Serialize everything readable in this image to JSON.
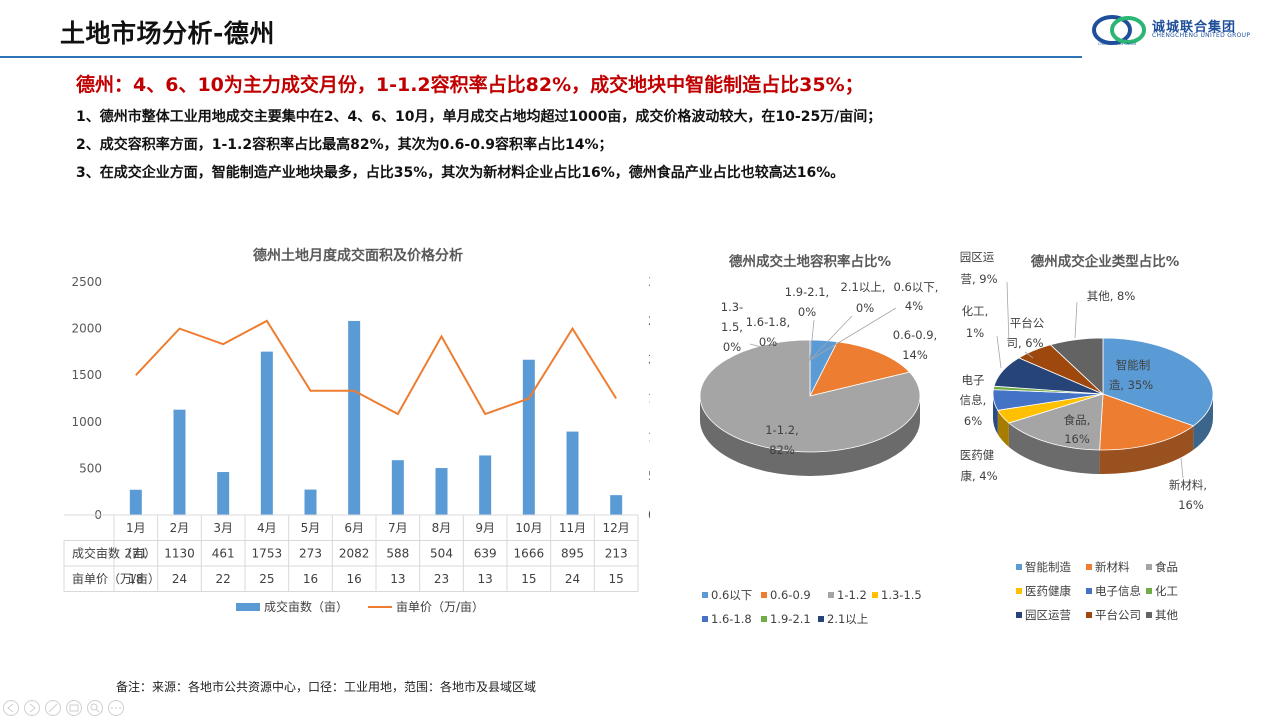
{
  "header": {
    "title": "土地市场分析-德州",
    "logo_cn": "诚城联合集团",
    "logo_en": "CHENGCHENG UNITED GROUP",
    "logo_ring": "CHENGCHENG UNION"
  },
  "headline": "德州：4、6、10为主力成交月份，1-1.2容积率占比82%，成交地块中智能制造占比35%；",
  "points": [
    "1、德州市整体工业用地成交主要集中在2、4、6、10月，单月成交占地均超过1000亩，成交价格波动较大，在10-25万/亩间；",
    "2、成交容积率方面，1-1.2容积率占比最高82%，其次为0.6-0.9容积率占比14%；",
    "3、在成交企业方面，智能制造产业地块最多，占比35%，其次为新材料企业占比16%，德州食品产业占比也较高达16%。"
  ],
  "footnote": "备注：来源：各地市公共资源中心，口径：工业用地，范围：各地市及县域区域",
  "chart_data": [
    {
      "type": "bar",
      "title": "德州土地月度成交面积及价格分析",
      "categories": [
        "1月",
        "2月",
        "3月",
        "4月",
        "5月",
        "6月",
        "7月",
        "8月",
        "9月",
        "10月",
        "11月",
        "12月"
      ],
      "series": [
        {
          "name": "成交亩数（亩）",
          "kind": "bar",
          "axis": "left",
          "color": "#5b9bd5",
          "values": [
            271,
            1130,
            461,
            1753,
            273,
            2082,
            588,
            504,
            639,
            1666,
            895,
            213
          ]
        },
        {
          "name": "亩单价（万/亩）",
          "kind": "line",
          "axis": "right",
          "color": "#ed7d31",
          "values": [
            18,
            24,
            22,
            25,
            16,
            16,
            13,
            23,
            13,
            15,
            24,
            15
          ]
        }
      ],
      "ylim": [
        0,
        2500
      ],
      "yticks": [
        "0",
        "500",
        "1000",
        "1500",
        "2000",
        "2500"
      ],
      "y2lim": [
        0,
        30
      ],
      "y2ticks": [
        "0",
        "5",
        "10",
        "15",
        "20",
        "25",
        "30"
      ],
      "table_rows": [
        {
          "label": "成交亩数（亩）",
          "values": [
            "271",
            "1130",
            "461",
            "1753",
            "273",
            "2082",
            "588",
            "504",
            "639",
            "1666",
            "895",
            "213"
          ]
        },
        {
          "label": "亩单价（万/亩）",
          "values": [
            "18",
            "24",
            "22",
            "25",
            "16",
            "16",
            "13",
            "23",
            "13",
            "15",
            "24",
            "15"
          ]
        }
      ],
      "legend": [
        "成交亩数（亩）",
        "亩单价（万/亩）"
      ],
      "legend_position": "bottom"
    },
    {
      "type": "pie",
      "title": "德州成交土地容积率占比%",
      "slices": [
        {
          "name": "0.6以下",
          "value": 4,
          "color": "#5b9bd5",
          "label_name": "0.6以下,",
          "label_value": "4%"
        },
        {
          "name": "0.6-0.9",
          "value": 14,
          "color": "#ed7d31",
          "label_name": "0.6-0.9,",
          "label_value": "14%"
        },
        {
          "name": "1-1.2",
          "value": 82,
          "color": "#a5a5a5",
          "label_name": "1-1.2,",
          "label_value": "82%"
        },
        {
          "name": "1.3-1.5",
          "value": 0,
          "color": "#ffc000",
          "label_name": "1.3-1.5,",
          "label_value": "0%"
        },
        {
          "name": "1.6-1.8",
          "value": 0,
          "color": "#4472c4",
          "label_name": "1.6-1.8,",
          "label_value": "0%"
        },
        {
          "name": "1.9-2.1",
          "value": 0,
          "color": "#70ad47",
          "label_name": "1.9-2.1,",
          "label_value": "0%"
        },
        {
          "name": "2.1以上",
          "value": 0,
          "color": "#264478",
          "label_name": "2.1以上,",
          "label_value": "0%"
        }
      ],
      "legend": [
        "0.6以下",
        "0.6-0.9",
        "1-1.2",
        "1.3-1.5",
        "1.6-1.8",
        "1.9-2.1",
        "2.1以上"
      ],
      "legend_position": "bottom"
    },
    {
      "type": "pie",
      "title": "德州成交企业类型占比%",
      "slices": [
        {
          "name": "智能制造",
          "value": 35,
          "color": "#5b9bd5",
          "label_name": "智能制",
          "label_value": "造, 35%"
        },
        {
          "name": "新材料",
          "value": 16,
          "color": "#ed7d31",
          "label_name": "新材料,",
          "label_value": "16%"
        },
        {
          "name": "食品",
          "value": 16,
          "color": "#a5a5a5",
          "label_name": "食品,",
          "label_value": "16%"
        },
        {
          "name": "医药健康",
          "value": 4,
          "color": "#ffc000",
          "label_name": "医药健",
          "label_value": "康, 4%"
        },
        {
          "name": "电子信息",
          "value": 6,
          "color": "#4472c4",
          "label_name": "电子",
          "label_value": "信息,"
        },
        {
          "name": "化工",
          "value": 1,
          "color": "#70ad47",
          "label_name": "化工,",
          "label_value": "1%"
        },
        {
          "name": "园区运营",
          "value": 9,
          "color": "#264478",
          "label_name": "园区运",
          "label_value": "营, 9%"
        },
        {
          "name": "平台公司",
          "value": 6,
          "color": "#9e480e",
          "label_name": "平台公",
          "label_value": "司, 6%"
        },
        {
          "name": "其他",
          "value": 8,
          "color": "#636363",
          "label_name": "其他, 8%",
          "label_value": ""
        }
      ],
      "extra_labels": {
        "dianzi_pct": "6%"
      },
      "legend": [
        "智能制造",
        "新材料",
        "食品",
        "医药健康",
        "电子信息",
        "化工",
        "园区运营",
        "平台公司",
        "其他"
      ],
      "legend_position": "bottom"
    }
  ]
}
